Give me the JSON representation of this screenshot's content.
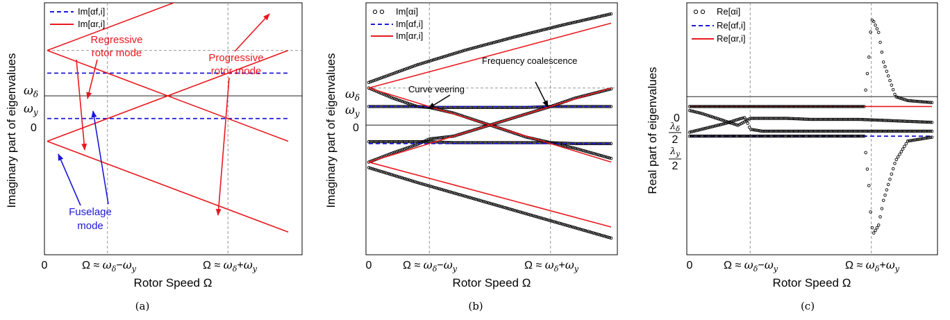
{
  "colors": {
    "red": "#e8191f",
    "blue": "#1c17d8",
    "black": "#000000",
    "grey": "#888888"
  },
  "chart_data": [
    {
      "type": "line",
      "panel": "a",
      "caption": "(a)",
      "xlabel": "Rotor Speed Ω",
      "ylabel": "Imaginary part of eigenvalues",
      "xlim": [
        0,
        1.0
      ],
      "ylim": [
        -1.4,
        0.82
      ],
      "xticks": [
        "0",
        "Ω ≈ ωδ−ωy",
        "Ω ≈ ωδ+ωy"
      ],
      "yticks": [
        "ωδ",
        "ωy",
        "0"
      ],
      "ref": {
        "w_delta": 0.4,
        "w_y": 0.2,
        "x_minus": 0.25,
        "x_plus": 0.75
      },
      "legend": [
        "Im[αf,i]",
        "Im[αr,i]"
      ],
      "legend_position": "top-left",
      "series": [
        {
          "name": "Im[αf,i]",
          "style": "dashed",
          "color": "blue",
          "x": [
            0,
            1
          ],
          "y": [
            0.2,
            0.2
          ]
        },
        {
          "name": "Im[αf,i]",
          "style": "dashed",
          "color": "blue",
          "x": [
            0,
            1
          ],
          "y": [
            -0.2,
            -0.2
          ]
        },
        {
          "name": "Im[αr,i]",
          "style": "solid",
          "color": "red",
          "x": [
            0,
            1
          ],
          "y": [
            0.4,
            1.2
          ]
        },
        {
          "name": "Im[αr,i]",
          "style": "solid",
          "color": "red",
          "x": [
            0,
            1
          ],
          "y": [
            0.4,
            -0.4
          ]
        },
        {
          "name": "Im[αr,i]",
          "style": "solid",
          "color": "red",
          "x": [
            0,
            1
          ],
          "y": [
            -0.4,
            0.4
          ]
        },
        {
          "name": "Im[αr,i]",
          "style": "solid",
          "color": "red",
          "x": [
            0,
            1
          ],
          "y": [
            -0.4,
            -1.2
          ]
        }
      ],
      "annotations": [
        {
          "text": "Regressive rotor mode",
          "color": "red"
        },
        {
          "text": "Progressive rotor mode",
          "color": "red"
        },
        {
          "text": "Fuselage mode",
          "color": "blue"
        }
      ]
    },
    {
      "type": "line",
      "panel": "b",
      "caption": "(b)",
      "xlabel": "Rotor Speed Ω",
      "ylabel": "Imaginary part of eigenvalues",
      "xlim": [
        0,
        1.0
      ],
      "ylim": [
        -1.4,
        1.32
      ],
      "xticks": [
        "0",
        "Ω ≈ ωδ−ωy",
        "Ω ≈ ωδ+ωy"
      ],
      "yticks": [
        "ωδ",
        "ωy",
        "0"
      ],
      "ref": {
        "w_delta": 0.4,
        "w_y": 0.2,
        "x_minus": 0.25,
        "x_plus": 0.75
      },
      "legend": [
        "Im[αi]",
        "Im[αf,i]",
        "Im[αr,i]"
      ],
      "legend_position": "top-left",
      "series": [
        {
          "name": "Im[αi]",
          "style": "markers",
          "color": "black",
          "x": [
            0,
            0.2,
            0.4,
            0.6,
            0.8,
            1.0
          ],
          "y": [
            0.46,
            0.65,
            0.81,
            0.95,
            1.08,
            1.2
          ]
        },
        {
          "name": "Im[αi]",
          "style": "markers",
          "color": "black",
          "x": [
            0,
            0.1,
            0.2,
            0.25,
            0.35,
            0.5,
            0.65,
            0.75,
            0.85,
            1.0
          ],
          "y": [
            0.4,
            0.29,
            0.2,
            0.19,
            0.13,
            0.0,
            -0.13,
            -0.19,
            -0.25,
            -0.36
          ]
        },
        {
          "name": "Im[αi]",
          "style": "markers",
          "color": "black",
          "x": [
            0,
            0.1,
            0.2,
            0.25,
            0.35,
            0.5,
            0.65,
            0.75,
            0.85,
            1.0
          ],
          "y": [
            0.2,
            0.2,
            0.2,
            0.19,
            0.19,
            0.19,
            0.19,
            0.2,
            0.2,
            0.2
          ]
        },
        {
          "name": "Im[αi]",
          "style": "markers",
          "color": "black",
          "x": [
            0,
            0.1,
            0.2,
            0.25,
            0.35,
            0.5,
            0.65,
            0.75,
            0.85,
            1.0
          ],
          "y": [
            -0.18,
            -0.18,
            -0.18,
            -0.18,
            -0.19,
            -0.19,
            -0.19,
            -0.19,
            -0.2,
            -0.2
          ]
        },
        {
          "name": "Im[αi]",
          "style": "markers",
          "color": "black",
          "x": [
            0,
            0.1,
            0.2,
            0.25,
            0.35,
            0.5,
            0.65,
            0.75,
            0.85,
            1.0
          ],
          "y": [
            -0.4,
            -0.3,
            -0.21,
            -0.15,
            -0.12,
            0.0,
            0.12,
            0.2,
            0.29,
            0.39
          ]
        },
        {
          "name": "Im[αi]",
          "style": "markers",
          "color": "black",
          "x": [
            0,
            0.2,
            0.4,
            0.6,
            0.8,
            1.0
          ],
          "y": [
            -0.46,
            -0.62,
            -0.77,
            -0.92,
            -1.07,
            -1.22
          ]
        },
        {
          "name": "Im[αf,i]",
          "style": "dashed",
          "color": "blue",
          "x": [
            0,
            1
          ],
          "y": [
            0.2,
            0.2
          ]
        },
        {
          "name": "Im[αf,i]",
          "style": "dashed",
          "color": "blue",
          "x": [
            0,
            1
          ],
          "y": [
            -0.2,
            -0.2
          ]
        },
        {
          "name": "Im[αr,i]",
          "style": "solid",
          "color": "red",
          "x": [
            0,
            1
          ],
          "y": [
            0.4,
            1.1
          ]
        },
        {
          "name": "Im[αr,i]",
          "style": "solid",
          "color": "red",
          "x": [
            0,
            1
          ],
          "y": [
            0.4,
            -0.4
          ]
        },
        {
          "name": "Im[αr,i]",
          "style": "solid",
          "color": "red",
          "x": [
            0,
            1
          ],
          "y": [
            -0.4,
            0.4
          ]
        },
        {
          "name": "Im[αr,i]",
          "style": "solid",
          "color": "red",
          "x": [
            0,
            1
          ],
          "y": [
            -0.4,
            -1.1
          ]
        }
      ],
      "annotations": [
        {
          "text": "Curve veering",
          "color": "black"
        },
        {
          "text": "Frequency coalescence",
          "color": "black"
        }
      ]
    },
    {
      "type": "scatter",
      "panel": "c",
      "caption": "(c)",
      "xlabel": "Rotor Speed Ω",
      "ylabel": "Real part of eigenvalues",
      "xlim": [
        0,
        1.0
      ],
      "ylim": [
        -1.6,
        0.95
      ],
      "xticks": [
        "0",
        "Ω ≈ ωδ−ωy",
        "Ω ≈ ωδ+ωy"
      ],
      "yticks": [
        "0",
        "λδ/2",
        "λy/2"
      ],
      "ref": {
        "l_delta_half": -0.1,
        "l_y_half": -0.4,
        "x_minus": 0.25,
        "x_plus": 0.75
      },
      "legend": [
        "Re[αi]",
        "Re[αf,i]",
        "Re[αr,i]"
      ],
      "legend_position": "top-left",
      "series": [
        {
          "name": "Re[αf,i]",
          "style": "dashed",
          "color": "blue",
          "x": [
            0,
            1
          ],
          "y": [
            -0.4,
            -0.4
          ]
        },
        {
          "name": "Re[αr,i]",
          "style": "solid",
          "color": "red",
          "x": [
            0,
            1
          ],
          "y": [
            -0.1,
            -0.1
          ]
        },
        {
          "name": "Re[αi]",
          "style": "markers",
          "color": "black",
          "x": [
            0,
            0.05,
            0.1,
            0.15,
            0.2,
            0.23,
            0.28,
            0.3,
            0.4,
            0.5,
            0.6,
            0.7,
            0.72,
            0.74,
            0.75,
            0.76,
            0.78,
            0.8,
            0.85,
            0.9,
            1.0
          ],
          "y": [
            -0.1,
            -0.1,
            -0.1,
            -0.1,
            -0.1,
            -0.1,
            -0.1,
            -0.1,
            -0.1,
            -0.1,
            -0.1,
            -0.1,
            -0.1,
            0.4,
            0.78,
            0.76,
            0.65,
            0.35,
            0.0,
            -0.04,
            -0.06
          ]
        },
        {
          "name": "Re[αi]",
          "style": "markers",
          "color": "black",
          "x": [
            0,
            0.05,
            0.1,
            0.15,
            0.2,
            0.25,
            0.3,
            0.4,
            0.5,
            0.6,
            0.7,
            0.72,
            0.74,
            0.75,
            0.76,
            0.78,
            0.8,
            0.85,
            0.9,
            1.0
          ],
          "y": [
            -0.4,
            -0.4,
            -0.4,
            -0.4,
            -0.4,
            -0.4,
            -0.4,
            -0.4,
            -0.4,
            -0.4,
            -0.4,
            -0.4,
            -0.9,
            -1.3,
            -1.38,
            -1.3,
            -1.05,
            -0.65,
            -0.45,
            -0.41
          ]
        },
        {
          "name": "Re[αi]",
          "style": "markers",
          "color": "black",
          "x": [
            0,
            0.05,
            0.1,
            0.15,
            0.2,
            0.23,
            0.25,
            0.3,
            0.35,
            0.4,
            0.5,
            0.6,
            0.7,
            0.8,
            0.9,
            1.0
          ],
          "y": [
            -0.14,
            -0.17,
            -0.21,
            -0.25,
            -0.29,
            -0.25,
            -0.22,
            -0.22,
            -0.22,
            -0.22,
            -0.23,
            -0.23,
            -0.23,
            -0.24,
            -0.25,
            -0.26
          ]
        },
        {
          "name": "Re[αi]",
          "style": "markers",
          "color": "black",
          "x": [
            0,
            0.05,
            0.1,
            0.15,
            0.2,
            0.23,
            0.25,
            0.3,
            0.35,
            0.4,
            0.5,
            0.6,
            0.7,
            0.8,
            0.9,
            1.0
          ],
          "y": [
            -0.36,
            -0.33,
            -0.3,
            -0.27,
            -0.23,
            -0.21,
            -0.33,
            -0.35,
            -0.35,
            -0.35,
            -0.35,
            -0.35,
            -0.35,
            -0.35,
            -0.35,
            -0.35
          ]
        }
      ]
    }
  ]
}
